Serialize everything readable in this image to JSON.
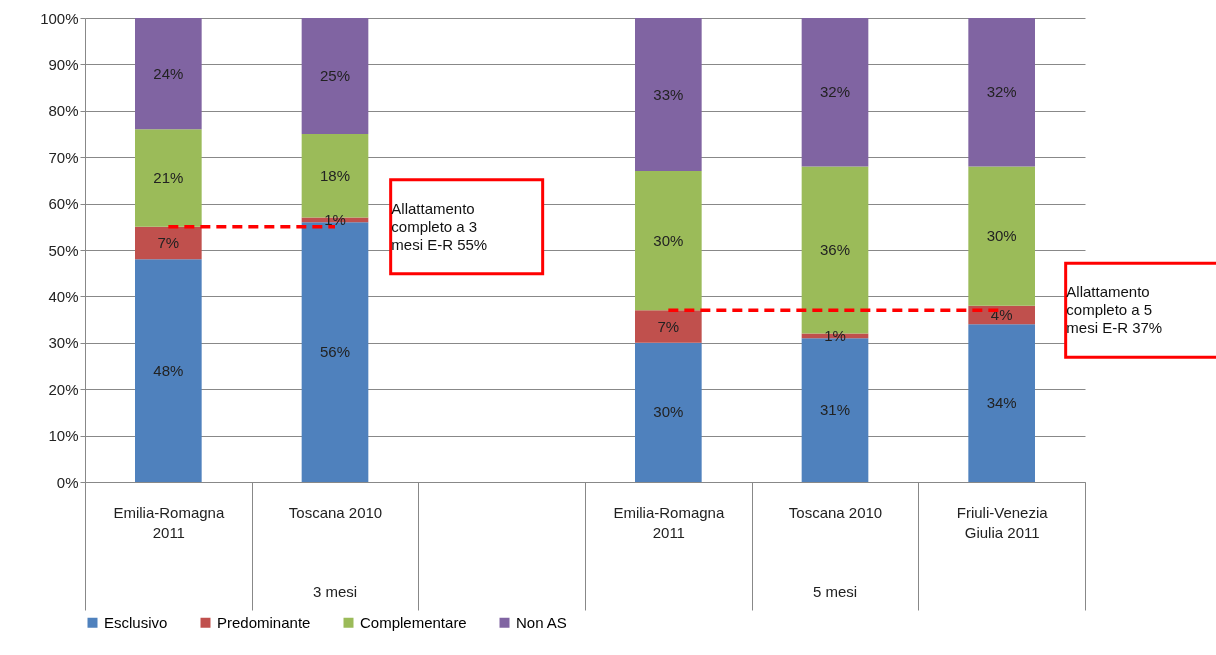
{
  "chart_data": {
    "type": "bar",
    "stacked": true,
    "categories": [
      "Emilia-Romagna 2011",
      "Toscana 2010",
      null,
      "Emilia-Romagna 2011",
      "Toscana 2010",
      "Friuli-Venezia Giulia 2011"
    ],
    "series": [
      {
        "name": "Esclusivo",
        "color": "#4f81bd",
        "values": [
          48,
          56,
          null,
          30,
          31,
          34
        ],
        "value_labels": [
          "48%",
          "56%",
          null,
          "30%",
          "31%",
          "34%"
        ]
      },
      {
        "name": "Predominante",
        "color": "#c0504d",
        "values": [
          7,
          1,
          null,
          7,
          1,
          4
        ],
        "value_labels": [
          "7%",
          "1%",
          null,
          "7%",
          "1%",
          "4%"
        ]
      },
      {
        "name": "Complementare",
        "color": "#9bbb59",
        "values": [
          21,
          18,
          null,
          30,
          36,
          30
        ],
        "value_labels": [
          "21%",
          "18%",
          null,
          "30%",
          "36%",
          "30%"
        ]
      },
      {
        "name": "Non AS",
        "color": "#8064a2",
        "values": [
          24,
          25,
          null,
          33,
          32,
          32
        ],
        "value_labels": [
          "24%",
          "25%",
          null,
          "33%",
          "32%",
          "32%"
        ]
      },
      {
        "type": "line",
        "color": "#ff0000",
        "line_style": "dashed",
        "values": [
          55,
          55,
          null,
          null,
          null,
          null
        ]
      },
      {
        "type": "line",
        "color": "#ff0000",
        "line_style": "dashed",
        "values": [
          null,
          null,
          null,
          37,
          37,
          37
        ]
      }
    ],
    "ylim": [
      0,
      100
    ],
    "yticks": [
      {
        "value": 0,
        "label": "0%"
      },
      {
        "value": 10,
        "label": "10%"
      },
      {
        "value": 20,
        "label": "20%"
      },
      {
        "value": 30,
        "label": "30%"
      },
      {
        "value": 40,
        "label": "40%"
      },
      {
        "value": 50,
        "label": "50%"
      },
      {
        "value": 60,
        "label": "60%"
      },
      {
        "value": 70,
        "label": "70%"
      },
      {
        "value": 80,
        "label": "80%"
      },
      {
        "value": 90,
        "label": "90%"
      },
      {
        "value": 100,
        "label": "100%"
      }
    ],
    "grid": "y",
    "legend": "bottom",
    "annotations": [
      "3 mesi",
      "5 mesi",
      "Allattamento completo a 3 mesi E-R 55%",
      "Allattamento completo a 5 mesi E-R 37%"
    ]
  }
}
